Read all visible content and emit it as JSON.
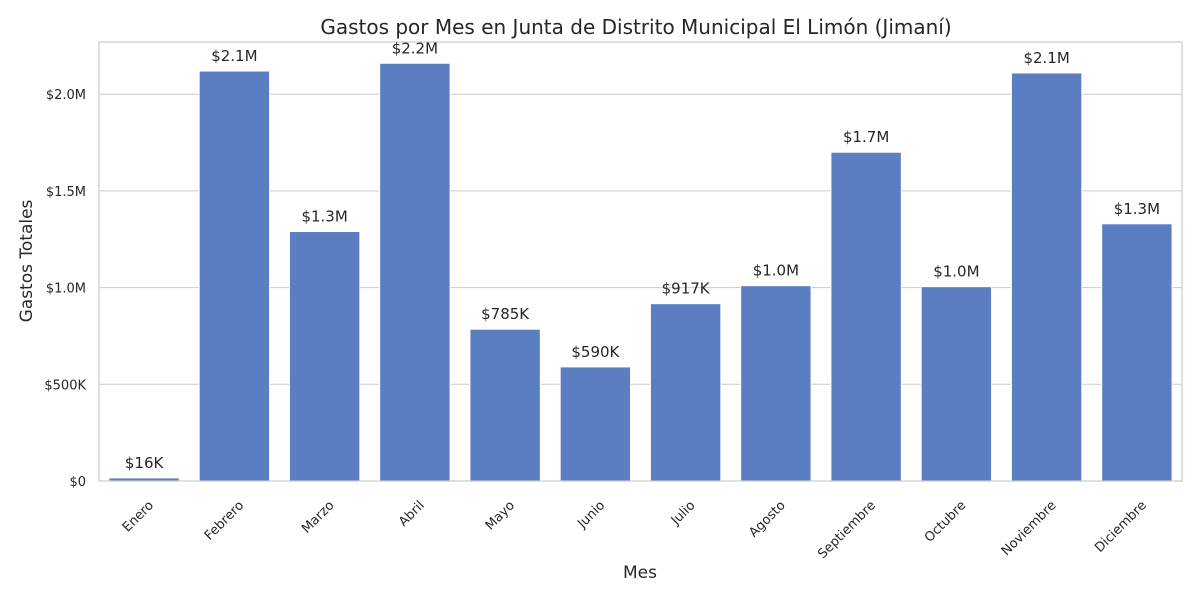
{
  "chart_data": {
    "type": "bar",
    "title": "Gastos por Mes en Junta de Distrito Municipal El Limón (Jimaní)",
    "xlabel": "Mes",
    "ylabel": "Gastos Totales",
    "categories": [
      "Enero",
      "Febrero",
      "Marzo",
      "Abril",
      "Mayo",
      "Junio",
      "Julio",
      "Agosto",
      "Septiembre",
      "Octubre",
      "Noviembre",
      "Diciembre"
    ],
    "values": [
      16000,
      2120000,
      1290000,
      2160000,
      785000,
      590000,
      917000,
      1010000,
      1700000,
      1005000,
      2110000,
      1330000
    ],
    "value_labels": [
      "$16K",
      "$2.1M",
      "$1.3M",
      "$2.2M",
      "$785K",
      "$590K",
      "$917K",
      "$1.0M",
      "$1.7M",
      "$1.0M",
      "$2.1M",
      "$1.3M"
    ],
    "ylim": [
      0,
      2270000
    ],
    "y_ticks": [
      0,
      500000,
      1000000,
      1500000,
      2000000
    ],
    "y_tick_labels": [
      "$0",
      "$500K",
      "$1.0M",
      "$1.5M",
      "$2.0M"
    ],
    "grid": "horizontal",
    "colors": {
      "bar": "#5b7ec2",
      "grid": "#cccccc",
      "text": "#262626"
    }
  }
}
